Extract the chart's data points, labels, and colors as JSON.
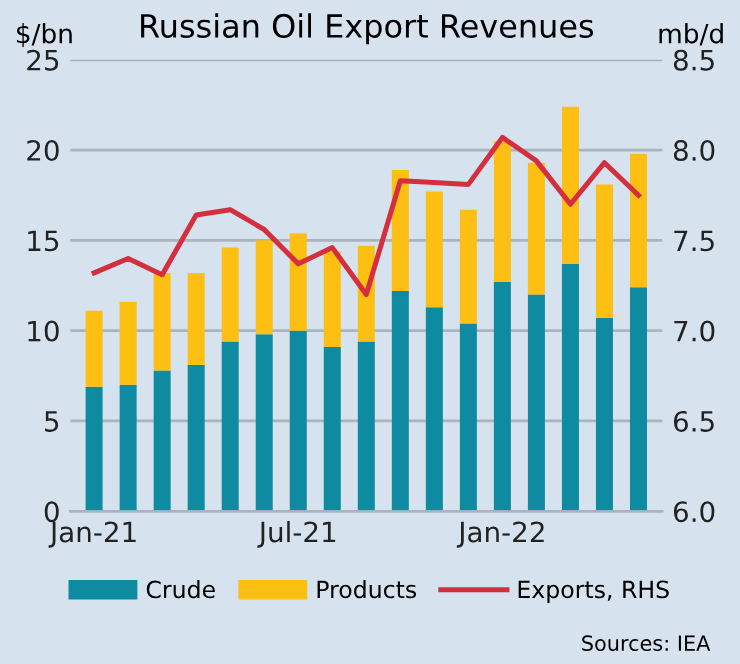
{
  "chart_data": {
    "type": "bar",
    "title": "Russian Oil Export Revenues",
    "ylabel": "$/bn",
    "y2label": "mb/d",
    "categories": [
      "Jan-21",
      null,
      null,
      null,
      null,
      null,
      "Jul-21",
      null,
      null,
      null,
      null,
      null,
      "Jan-22",
      null,
      null,
      null,
      null
    ],
    "stacked": true,
    "series": [
      {
        "name": "Crude",
        "color": "#0f8ba1",
        "values": [
          6.9,
          7.0,
          7.8,
          8.1,
          9.4,
          9.8,
          10.0,
          9.1,
          9.4,
          12.2,
          11.3,
          10.4,
          12.7,
          12.0,
          13.7,
          10.7,
          12.4
        ]
      },
      {
        "name": "Products",
        "color": "#fcbf12",
        "values": [
          4.2,
          4.6,
          5.4,
          5.1,
          5.2,
          5.2,
          5.4,
          5.3,
          5.3,
          6.7,
          6.4,
          6.3,
          7.8,
          7.3,
          8.7,
          7.4,
          7.4
        ]
      },
      {
        "name": "Exports, RHS",
        "type": "line",
        "axis": "y2",
        "color": "#d32f3f",
        "values": [
          7.32,
          7.4,
          7.31,
          7.64,
          7.67,
          7.56,
          7.37,
          7.46,
          7.2,
          7.83,
          7.82,
          7.81,
          8.07,
          7.94,
          7.7,
          7.93,
          7.75
        ]
      }
    ],
    "ylim": [
      0,
      25
    ],
    "yticks": [
      0,
      5,
      10,
      15,
      20,
      25
    ],
    "y2lim": [
      6.0,
      8.5
    ],
    "y2ticks": [
      {
        "value": 6.0,
        "label": "6.0"
      },
      {
        "value": 6.5,
        "label": "6.5"
      },
      {
        "value": 7.0,
        "label": "7.0"
      },
      {
        "value": 7.5,
        "label": "7.5"
      },
      {
        "value": 8.0,
        "label": "8.0"
      },
      {
        "value": 8.5,
        "label": "8.5"
      }
    ],
    "grid": "y",
    "legend": "bottom",
    "annotations": [
      "Sources: IEA"
    ]
  }
}
